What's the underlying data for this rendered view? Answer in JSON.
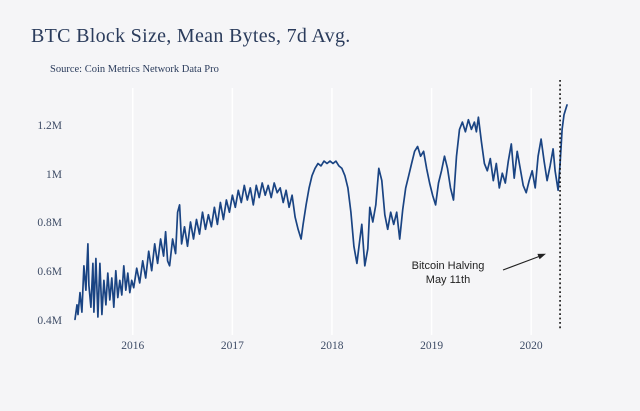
{
  "header": {
    "title": "BTC Block Size, Mean Bytes, 7d Avg.",
    "source": "Source: Coin Metrics Network Data Pro"
  },
  "annotation": {
    "line1": "Bitcoin Halving",
    "line2": "May 11th"
  },
  "colors": {
    "background": "#f5f5f7",
    "line": "#1a4483",
    "grid": "#ffffff",
    "title_text": "#2b3c5c",
    "tick_text": "#3e4c66",
    "halving_line": "#111111",
    "annotation_text": "#222222"
  },
  "chart_data": {
    "type": "line",
    "title": "BTC Block Size, Mean Bytes, 7d Avg.",
    "subtitle": "Source: Coin Metrics Network Data Pro",
    "xlabel": "",
    "ylabel": "",
    "unit": "bytes (millions)",
    "grid": "vertical-only",
    "legend": "none",
    "xlim": [
      2015.35,
      2020.45
    ],
    "ylim": [
      0.35,
      1.36
    ],
    "xticks": [
      {
        "v": 2016,
        "label": "2016"
      },
      {
        "v": 2017,
        "label": "2017"
      },
      {
        "v": 2018,
        "label": "2018"
      },
      {
        "v": 2019,
        "label": "2019"
      },
      {
        "v": 2020,
        "label": "2020"
      }
    ],
    "yticks": [
      {
        "v": 0.4,
        "label": "0.4M"
      },
      {
        "v": 0.6,
        "label": "0.6M"
      },
      {
        "v": 0.8,
        "label": "0.8M"
      },
      {
        "v": 1.0,
        "label": "1M"
      },
      {
        "v": 1.2,
        "label": "1.2M"
      }
    ],
    "halving_line": {
      "year": 2020.29,
      "style": "dotted",
      "label": "Bitcoin Halving May 11th"
    },
    "series": [
      {
        "name": "BTC mean block size, 7d avg (M bytes)",
        "color": "#1a4483",
        "points": [
          [
            2015.42,
            0.41
          ],
          [
            2015.44,
            0.47
          ],
          [
            2015.45,
            0.43
          ],
          [
            2015.47,
            0.52
          ],
          [
            2015.49,
            0.44
          ],
          [
            2015.51,
            0.63
          ],
          [
            2015.53,
            0.53
          ],
          [
            2015.55,
            0.72
          ],
          [
            2015.56,
            0.55
          ],
          [
            2015.58,
            0.46
          ],
          [
            2015.6,
            0.64
          ],
          [
            2015.61,
            0.44
          ],
          [
            2015.63,
            0.66
          ],
          [
            2015.65,
            0.42
          ],
          [
            2015.67,
            0.64
          ],
          [
            2015.69,
            0.43
          ],
          [
            2015.71,
            0.57
          ],
          [
            2015.73,
            0.47
          ],
          [
            2015.75,
            0.6
          ],
          [
            2015.77,
            0.49
          ],
          [
            2015.79,
            0.58
          ],
          [
            2015.81,
            0.46
          ],
          [
            2015.83,
            0.61
          ],
          [
            2015.85,
            0.5
          ],
          [
            2015.87,
            0.57
          ],
          [
            2015.89,
            0.51
          ],
          [
            2015.91,
            0.63
          ],
          [
            2015.93,
            0.53
          ],
          [
            2015.95,
            0.6
          ],
          [
            2015.97,
            0.52
          ],
          [
            2015.99,
            0.57
          ],
          [
            2016.01,
            0.54
          ],
          [
            2016.04,
            0.62
          ],
          [
            2016.07,
            0.56
          ],
          [
            2016.1,
            0.65
          ],
          [
            2016.13,
            0.58
          ],
          [
            2016.16,
            0.69
          ],
          [
            2016.19,
            0.61
          ],
          [
            2016.22,
            0.72
          ],
          [
            2016.25,
            0.64
          ],
          [
            2016.28,
            0.74
          ],
          [
            2016.31,
            0.67
          ],
          [
            2016.33,
            0.77
          ],
          [
            2016.35,
            0.65
          ],
          [
            2016.37,
            0.63
          ],
          [
            2016.4,
            0.74
          ],
          [
            2016.43,
            0.68
          ],
          [
            2016.45,
            0.85
          ],
          [
            2016.47,
            0.88
          ],
          [
            2016.49,
            0.72
          ],
          [
            2016.52,
            0.79
          ],
          [
            2016.55,
            0.71
          ],
          [
            2016.58,
            0.81
          ],
          [
            2016.61,
            0.74
          ],
          [
            2016.64,
            0.82
          ],
          [
            2016.67,
            0.76
          ],
          [
            2016.7,
            0.85
          ],
          [
            2016.73,
            0.78
          ],
          [
            2016.76,
            0.84
          ],
          [
            2016.79,
            0.79
          ],
          [
            2016.82,
            0.87
          ],
          [
            2016.85,
            0.8
          ],
          [
            2016.88,
            0.89
          ],
          [
            2016.91,
            0.82
          ],
          [
            2016.94,
            0.9
          ],
          [
            2016.97,
            0.85
          ],
          [
            2017.0,
            0.92
          ],
          [
            2017.03,
            0.87
          ],
          [
            2017.06,
            0.94
          ],
          [
            2017.09,
            0.89
          ],
          [
            2017.12,
            0.96
          ],
          [
            2017.15,
            0.9
          ],
          [
            2017.18,
            0.95
          ],
          [
            2017.21,
            0.88
          ],
          [
            2017.24,
            0.96
          ],
          [
            2017.27,
            0.91
          ],
          [
            2017.3,
            0.97
          ],
          [
            2017.33,
            0.92
          ],
          [
            2017.36,
            0.96
          ],
          [
            2017.39,
            0.91
          ],
          [
            2017.42,
            0.97
          ],
          [
            2017.45,
            0.93
          ],
          [
            2017.48,
            0.95
          ],
          [
            2017.51,
            0.89
          ],
          [
            2017.54,
            0.94
          ],
          [
            2017.57,
            0.87
          ],
          [
            2017.6,
            0.92
          ],
          [
            2017.63,
            0.83
          ],
          [
            2017.66,
            0.78
          ],
          [
            2017.69,
            0.74
          ],
          [
            2017.71,
            0.8
          ],
          [
            2017.74,
            0.88
          ],
          [
            2017.77,
            0.95
          ],
          [
            2017.8,
            1.0
          ],
          [
            2017.83,
            1.03
          ],
          [
            2017.86,
            1.05
          ],
          [
            2017.89,
            1.04
          ],
          [
            2017.92,
            1.06
          ],
          [
            2017.95,
            1.05
          ],
          [
            2017.98,
            1.06
          ],
          [
            2018.01,
            1.05
          ],
          [
            2018.04,
            1.06
          ],
          [
            2018.07,
            1.04
          ],
          [
            2018.1,
            1.03
          ],
          [
            2018.13,
            1.0
          ],
          [
            2018.16,
            0.95
          ],
          [
            2018.19,
            0.85
          ],
          [
            2018.22,
            0.71
          ],
          [
            2018.25,
            0.64
          ],
          [
            2018.28,
            0.74
          ],
          [
            2018.3,
            0.8
          ],
          [
            2018.33,
            0.63
          ],
          [
            2018.36,
            0.7
          ],
          [
            2018.38,
            0.87
          ],
          [
            2018.41,
            0.81
          ],
          [
            2018.44,
            0.88
          ],
          [
            2018.47,
            1.03
          ],
          [
            2018.5,
            0.98
          ],
          [
            2018.53,
            0.84
          ],
          [
            2018.56,
            0.78
          ],
          [
            2018.59,
            0.85
          ],
          [
            2018.62,
            0.8
          ],
          [
            2018.65,
            0.85
          ],
          [
            2018.68,
            0.74
          ],
          [
            2018.71,
            0.86
          ],
          [
            2018.74,
            0.95
          ],
          [
            2018.77,
            1.0
          ],
          [
            2018.8,
            1.05
          ],
          [
            2018.83,
            1.1
          ],
          [
            2018.86,
            1.12
          ],
          [
            2018.89,
            1.08
          ],
          [
            2018.92,
            1.1
          ],
          [
            2018.95,
            1.03
          ],
          [
            2018.98,
            0.97
          ],
          [
            2019.01,
            0.92
          ],
          [
            2019.04,
            0.88
          ],
          [
            2019.07,
            0.97
          ],
          [
            2019.1,
            1.02
          ],
          [
            2019.13,
            1.08
          ],
          [
            2019.16,
            1.03
          ],
          [
            2019.19,
            0.95
          ],
          [
            2019.22,
            0.9
          ],
          [
            2019.25,
            1.08
          ],
          [
            2019.28,
            1.19
          ],
          [
            2019.31,
            1.22
          ],
          [
            2019.34,
            1.18
          ],
          [
            2019.37,
            1.23
          ],
          [
            2019.4,
            1.19
          ],
          [
            2019.43,
            1.22
          ],
          [
            2019.45,
            1.18
          ],
          [
            2019.47,
            1.24
          ],
          [
            2019.5,
            1.14
          ],
          [
            2019.53,
            1.05
          ],
          [
            2019.56,
            1.02
          ],
          [
            2019.59,
            1.07
          ],
          [
            2019.62,
            0.98
          ],
          [
            2019.65,
            1.05
          ],
          [
            2019.68,
            0.95
          ],
          [
            2019.71,
            1.01
          ],
          [
            2019.74,
            0.97
          ],
          [
            2019.77,
            1.06
          ],
          [
            2019.8,
            1.13
          ],
          [
            2019.83,
            0.99
          ],
          [
            2019.86,
            1.1
          ],
          [
            2019.89,
            1.03
          ],
          [
            2019.92,
            0.96
          ],
          [
            2019.95,
            0.93
          ],
          [
            2019.98,
            0.98
          ],
          [
            2020.01,
            1.02
          ],
          [
            2020.04,
            0.95
          ],
          [
            2020.07,
            1.08
          ],
          [
            2020.1,
            1.15
          ],
          [
            2020.13,
            1.06
          ],
          [
            2020.16,
            0.98
          ],
          [
            2020.19,
            1.04
          ],
          [
            2020.22,
            1.11
          ],
          [
            2020.24,
            1.02
          ],
          [
            2020.27,
            0.94
          ],
          [
            2020.29,
            1.05
          ],
          [
            2020.31,
            1.19
          ],
          [
            2020.33,
            1.25
          ],
          [
            2020.36,
            1.29
          ]
        ]
      }
    ]
  }
}
